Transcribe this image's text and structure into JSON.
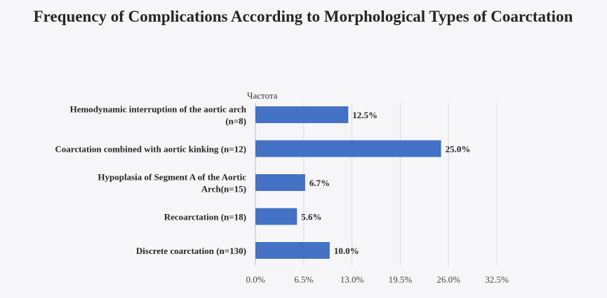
{
  "chart_data": {
    "type": "bar",
    "orientation": "horizontal",
    "title": "Frequency of Complications According to Morphological Types of Coarctation",
    "categories": [
      [
        "Hemodynamic interruption of the aortic arch",
        "(n=8)"
      ],
      [
        "Coarctation combined with aortic kinking (n=12)"
      ],
      [
        "Hypoplasia of Segment A of the Aortic",
        "Arch(n=15)"
      ],
      [
        "Recoarctation (n=18)"
      ],
      [
        "Discrete coarctation (n=130)"
      ]
    ],
    "series": [
      {
        "name": "Частота",
        "values": [
          12.5,
          25.0,
          6.7,
          5.6,
          10.0
        ],
        "labels": [
          "12.5%",
          "25.0%",
          "6.7%",
          "5.6%",
          "10.0%"
        ],
        "color": "#4472c4"
      }
    ],
    "xlim": [
      0,
      32.5
    ],
    "xticks": [
      0,
      6.5,
      13,
      19.5,
      26,
      32.5
    ],
    "xtick_labels": [
      "0.0%",
      "6.5%",
      "13.0%",
      "19.5%",
      "26.0%",
      "32.5%"
    ],
    "grid": "vertical",
    "legend": "none"
  },
  "colors": {
    "background": "#f6f6f9",
    "bar": "#4472c4",
    "grid": "#d9d9d9",
    "axis": "#bfbfbf"
  }
}
